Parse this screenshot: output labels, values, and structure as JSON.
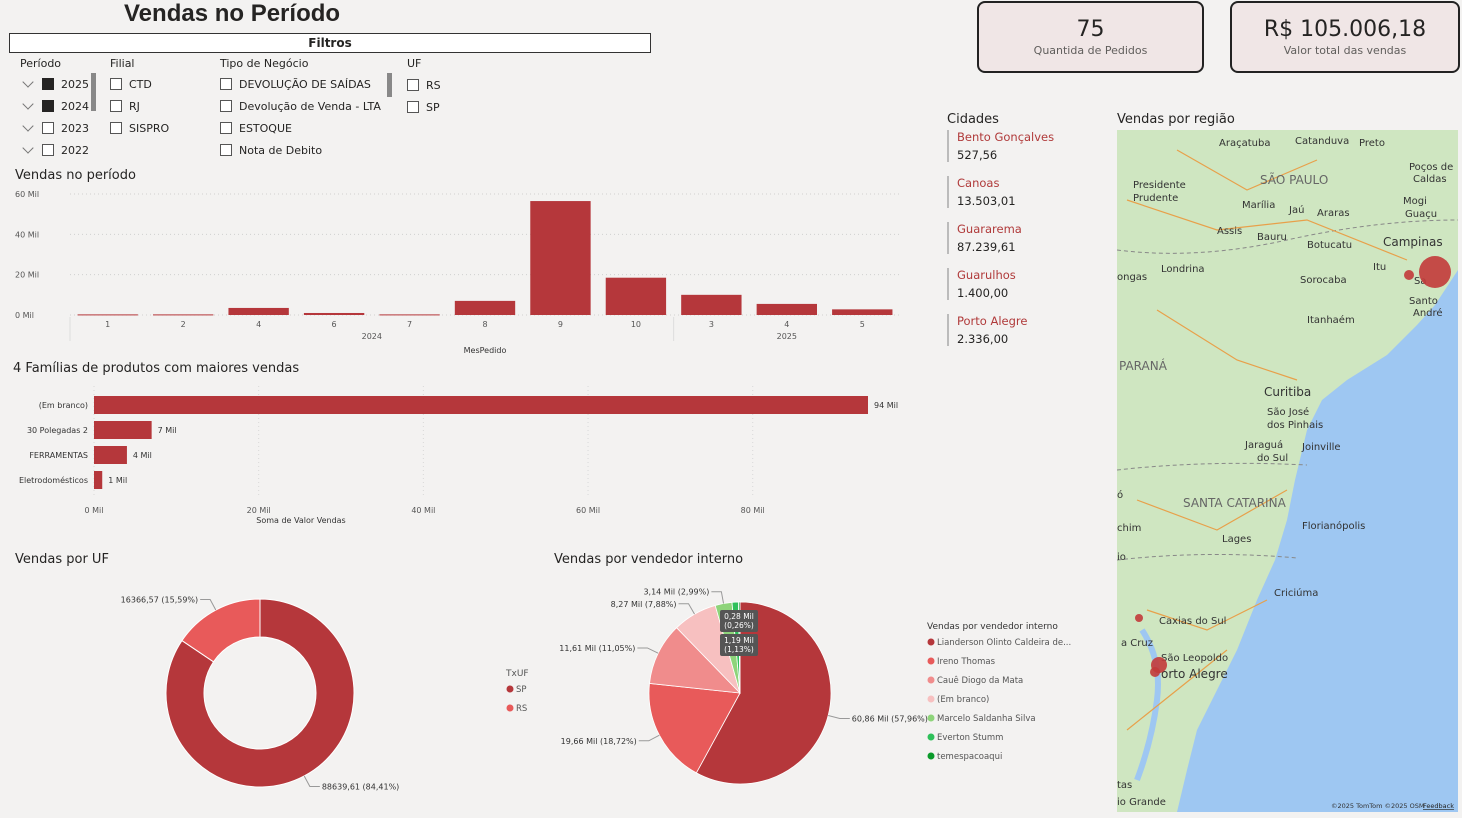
{
  "page_title": "Vendas no Período",
  "filters": {
    "bar_label": "Filtros",
    "periodo": {
      "title": "Período",
      "items": [
        {
          "label": "2025",
          "checked": true
        },
        {
          "label": "2024",
          "checked": true
        },
        {
          "label": "2023",
          "checked": false
        },
        {
          "label": "2022",
          "checked": false
        }
      ]
    },
    "filial": {
      "title": "Filial",
      "items": [
        {
          "label": "CTD"
        },
        {
          "label": "RJ"
        },
        {
          "label": "SISPRO"
        }
      ]
    },
    "tipo_negocio": {
      "title": "Tipo de Negócio",
      "items": [
        {
          "label": "DEVOLUÇÃO DE SAÍDAS"
        },
        {
          "label": "Devolução de Venda - LTA"
        },
        {
          "label": "ESTOQUE"
        },
        {
          "label": "Nota de Debito"
        }
      ]
    },
    "uf": {
      "title": "UF",
      "items": [
        {
          "label": "RS"
        },
        {
          "label": "SP"
        }
      ]
    }
  },
  "cards": [
    {
      "value": "75",
      "label": "Quantida de Pedidos"
    },
    {
      "value": "R$ 105.006,18",
      "label": "Valor total das vendas"
    }
  ],
  "cidades": {
    "title": "Cidades",
    "items": [
      {
        "name": "Bento Gonçalves",
        "value": "527,56"
      },
      {
        "name": "Canoas",
        "value": "13.503,01"
      },
      {
        "name": "Guararema",
        "value": "87.239,61"
      },
      {
        "name": "Guarulhos",
        "value": "1.400,00"
      },
      {
        "name": "Porto Alegre",
        "value": "2.336,00"
      }
    ]
  },
  "map": {
    "title": "Vendas por região",
    "labels": [
      "Araçatuba",
      "Catanduva",
      "Preto",
      "Poços de",
      "Caldas",
      "SÃO PAULO",
      "Presidente",
      "Prudente",
      "Marília",
      "Jaú",
      "Araras",
      "Mogi",
      "Guaçu",
      "Assis",
      "Bauru",
      "Botucatu",
      "Campinas",
      "ongas",
      "Londrina",
      "Sorocaba",
      "Itu",
      "Santo",
      "André",
      "Itanhaém",
      "PARANÁ",
      "Curitiba",
      "São José",
      "dos Pinhais",
      "Jaraguá",
      "do Sul",
      "Joinville",
      "SANTA CATARINA",
      "ó",
      "chim",
      "Lages",
      "Florianópolis",
      "io",
      "Criciúma",
      "Caxias do Sul",
      "a Cruz",
      "São Leopoldo",
      "orto Alegre",
      "tas",
      "io Grande",
      "Sa"
    ],
    "attribution": "©2025 TomTom ©2025 OSM",
    "feedback": "Feedback"
  },
  "colors": {
    "accent": "#b5373b",
    "rs": "#e85a5a",
    "light": "#f08c8c"
  },
  "charts": {
    "vendas_periodo_title": "Vendas no período",
    "familias_title": "4 Famílias de produtos com maiores vendas",
    "uf_title": "Vendas por UF",
    "vendedor_title": "Vendas por vendedor interno"
  },
  "chart_data": [
    {
      "type": "bar",
      "title": "Vendas no período",
      "categories": [
        "1",
        "2",
        "4",
        "6",
        "7",
        "8",
        "9",
        "10",
        "3",
        "4",
        "5"
      ],
      "groups": [
        {
          "label": "2024",
          "count": 8
        },
        {
          "label": "2025",
          "count": 3
        }
      ],
      "values": [
        0.3,
        0.3,
        3.5,
        1.0,
        0.3,
        7.0,
        56.5,
        18.5,
        10.0,
        5.5,
        2.8
      ],
      "xlabel": "MesPedido",
      "ylim": [
        0,
        60
      ],
      "yticks": [
        "0 Mil",
        "20 Mil",
        "40 Mil",
        "60 Mil"
      ],
      "ytick_values": [
        0,
        20,
        40,
        60
      ],
      "grid": true
    },
    {
      "type": "bar",
      "orientation": "horizontal",
      "title": "4 Famílias de produtos com maiores vendas",
      "categories": [
        "(Em branco)",
        "30 Polegadas 2",
        "FERRAMENTAS",
        "Eletrodomésticos"
      ],
      "values": [
        94,
        7,
        4,
        1
      ],
      "data_labels": [
        "94 Mil",
        "7 Mil",
        "4 Mil",
        "1 Mil"
      ],
      "xlabel": "Soma de Valor Vendas",
      "xlim": [
        0,
        94
      ],
      "xticks": [
        "0 Mil",
        "20 Mil",
        "40 Mil",
        "60 Mil",
        "80 Mil"
      ],
      "xtick_values": [
        0,
        20,
        40,
        60,
        80
      ]
    },
    {
      "type": "pie",
      "donut": true,
      "title": "Vendas por UF",
      "legend_title": "TxUF",
      "slices": [
        {
          "label": "SP",
          "value": 88639.61,
          "text": "88639,61 (84,41%)",
          "color": "#b5373b"
        },
        {
          "label": "RS",
          "value": 16366.57,
          "text": "16366,57 (15,59%)",
          "color": "#e85a5a"
        }
      ]
    },
    {
      "type": "pie",
      "title": "Vendas por vendedor interno",
      "legend_title": "Vendas por vendedor interno",
      "slices": [
        {
          "label": "Lianderson Olinto Caldeira de...",
          "value": 60.86,
          "text": "60,86 Mil (57,96%)",
          "color": "#b5373b"
        },
        {
          "label": "Ireno Thomas",
          "value": 19.66,
          "text": "19,66 Mil (18,72%)",
          "color": "#e85a5a"
        },
        {
          "label": "Cauê Diogo da Mata",
          "value": 11.61,
          "text": "11,61 Mil (11,05%)",
          "color": "#f08c8c"
        },
        {
          "label": "(Em branco)",
          "value": 8.27,
          "text": "8,27 Mil (7,88%)",
          "color": "#f7c0c0"
        },
        {
          "label": "Marcelo Saldanha Silva",
          "value": 3.14,
          "text": "3,14 Mil (2,99%)",
          "color": "#8ed47a"
        },
        {
          "label": "Everton Stumm",
          "value": 1.19,
          "text": "1,19 Mil (1,13%)",
          "color": "#2fc05a"
        },
        {
          "label": "temespacoaqui",
          "value": 0.28,
          "text": "0,28 Mil (0,26%)",
          "color": "#0a9a2a"
        }
      ]
    }
  ]
}
